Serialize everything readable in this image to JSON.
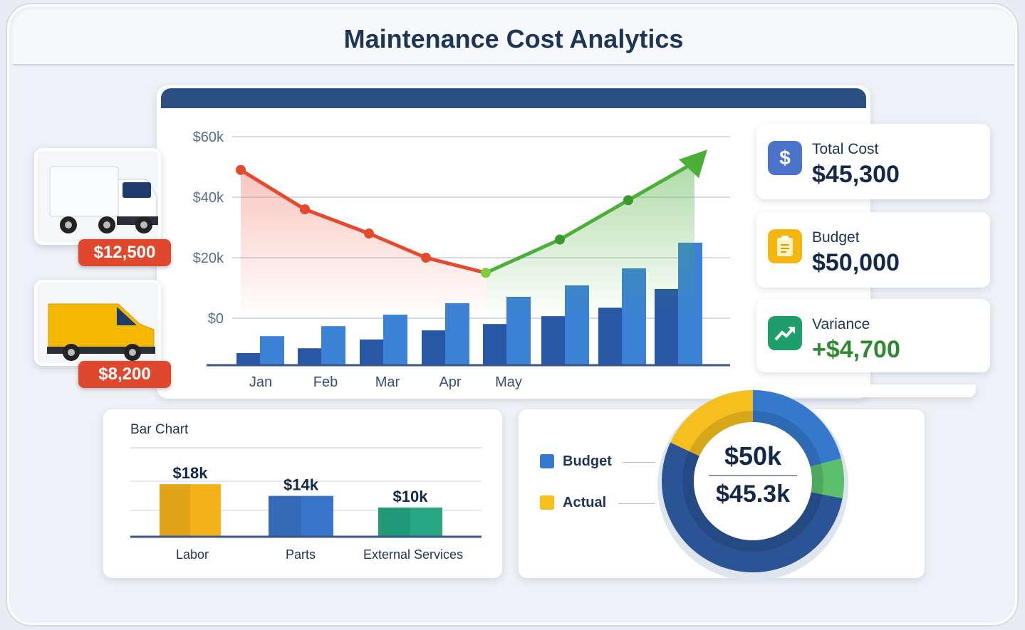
{
  "header": {
    "title": "Maintenance Cost Analytics"
  },
  "vehicles": [
    {
      "type": "truck",
      "cost": "$12,500"
    },
    {
      "type": "van",
      "cost": "$8,200"
    }
  ],
  "kpis": [
    {
      "label": "Total Cost",
      "value": "$45,300",
      "icon": "dollar-icon",
      "color": "#4a73c9"
    },
    {
      "label": "Budget",
      "value": "$50,000",
      "icon": "clipboard-icon",
      "color": "#f5b70f"
    },
    {
      "label": "Variance",
      "value": "+$4,700",
      "icon": "trend-up-icon",
      "color": "#1e9e6a",
      "value_color": "#2f8a2f"
    }
  ],
  "chart_data": [
    {
      "type": "line",
      "y_ticks": [
        "$60k",
        "$40k",
        "$20k",
        "$0"
      ],
      "y_tick_values": [
        60,
        40,
        20,
        0
      ],
      "x_ticks": [
        "Jan",
        "Feb",
        "Mar",
        "Apr",
        "May"
      ],
      "grid": true,
      "line_values": [
        49,
        36,
        28,
        20,
        15,
        26,
        39,
        51.5
      ],
      "line_colors": {
        "decreasing": "#e64a2e",
        "increasing": "#4caf3a"
      },
      "bar_series": [
        {
          "color": "#2857a6",
          "values": [
            4,
            5.6,
            8.5,
            11.5,
            13.6,
            16.2,
            19,
            25.2
          ]
        },
        {
          "color": "#3b82d6",
          "values": [
            9.6,
            12.9,
            16.7,
            20.5,
            22.6,
            26.4,
            32,
            40.5
          ]
        }
      ]
    },
    {
      "type": "bar",
      "title": "Bar Chart",
      "categories": [
        "Labor",
        "Parts",
        "External Services"
      ],
      "values": [
        18,
        14,
        10
      ],
      "labels": [
        "$18k",
        "$14k",
        "$10k"
      ],
      "colors": [
        "#f5b11a",
        "#3a74c9",
        "#27a882"
      ]
    },
    {
      "type": "pie",
      "legend": [
        {
          "name": "Budget",
          "color": "#3479cc"
        },
        {
          "name": "Actual",
          "color": "#f5bf1e"
        }
      ],
      "segments": [
        {
          "color": "#3479cc",
          "share": 0.21
        },
        {
          "color": "#5cbf6c",
          "share": 0.07
        },
        {
          "color": "#2a5496",
          "share": 0.54
        },
        {
          "color": "#f5bf1e",
          "share": 0.18
        }
      ],
      "center_top": "$50k",
      "center_bottom": "$45.3k"
    }
  ]
}
